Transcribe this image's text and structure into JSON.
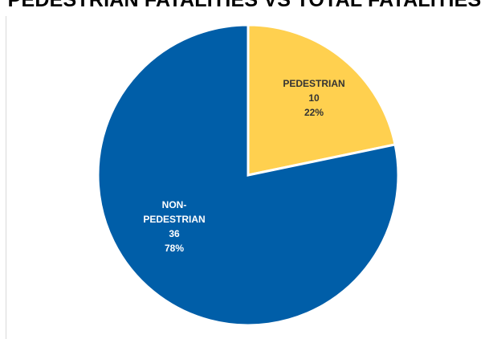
{
  "chart_data": {
    "type": "pie",
    "title": "PEDESTRIAN FATALITIES VS TOTAL FATALITIES",
    "slices": [
      {
        "name": "PEDESTRIAN",
        "value": 10,
        "percent": "22%",
        "color": "#FFD04F",
        "label_color": "#333333"
      },
      {
        "name": "NON-PEDESTRIAN",
        "value": 36,
        "percent": "78%",
        "color": "#005EA8",
        "label_color": "#FFFFFF"
      }
    ]
  }
}
